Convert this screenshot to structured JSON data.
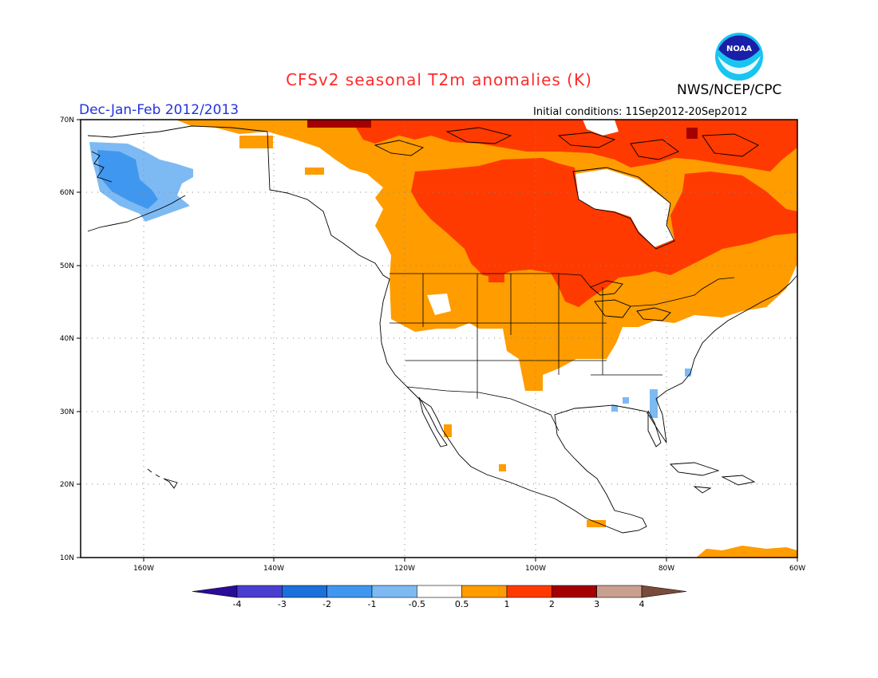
{
  "title": "CFSv2 seasonal T2m anomalies (K)",
  "organization": "NWS/NCEP/CPC",
  "logo_text": "NOAA",
  "season": "Dec-Jan-Feb 2012/2013",
  "initial_conditions": "Initial conditions: 11Sep2012-20Sep2012",
  "lat_labels": [
    "70N",
    "60N",
    "50N",
    "40N",
    "30N",
    "20N",
    "10N"
  ],
  "lon_labels": [
    "160W",
    "140W",
    "120W",
    "100W",
    "80W",
    "60W"
  ],
  "colorbar": {
    "labels": [
      "-4",
      "-3",
      "-2",
      "-1",
      "-0.5",
      "0.5",
      "1",
      "2",
      "3",
      "4"
    ],
    "colors": [
      "#2a0c9a",
      "#4a3ed0",
      "#1d6fdb",
      "#3f97ef",
      "#7dbaf4",
      "#ffffff",
      "#ff9c00",
      "#ff3a00",
      "#a40000",
      "#c8a090",
      "#7a4a3a"
    ]
  },
  "map_colors": {
    "anom_0_5_to_1": "#ff9c00",
    "anom_1_to_2": "#ff3a00",
    "anom_2_to_3": "#a40000",
    "anom_neg_0_5_to_neg_1": "#7dbaf4",
    "anom_neg_1_to_neg_2": "#3f97ef"
  }
}
